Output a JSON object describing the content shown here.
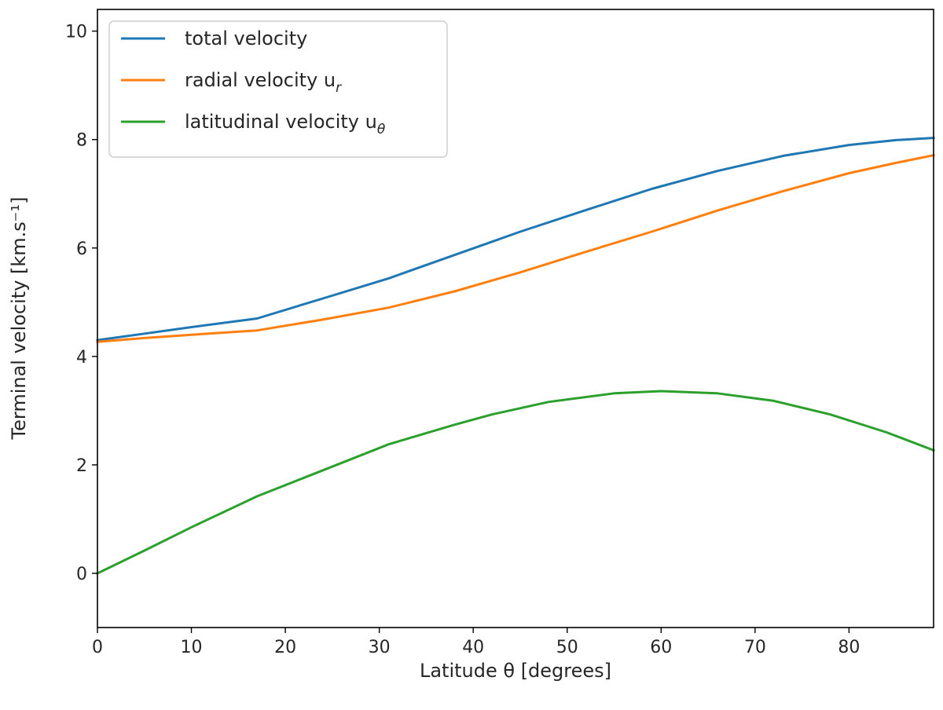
{
  "chart_data": {
    "type": "line",
    "title": "",
    "xlabel": "Latitude θ [degrees]",
    "ylabel": "Terminal velocity [km.s⁻¹]",
    "xlim": [
      0,
      89
    ],
    "ylim": [
      -1,
      10.4
    ],
    "xticks": [
      0,
      10,
      20,
      30,
      40,
      50,
      60,
      70,
      80
    ],
    "yticks": [
      0,
      2,
      4,
      6,
      8,
      10
    ],
    "legend_position": "upper left",
    "series": [
      {
        "name": "total velocity",
        "name_main": "total velocity",
        "name_sub": "",
        "color": "#1f77b4",
        "x": [
          0,
          5,
          10,
          17,
          24,
          31,
          38,
          45,
          52,
          59,
          66,
          73,
          80,
          85,
          89
        ],
        "y": [
          4.3,
          4.42,
          4.54,
          4.7,
          5.07,
          5.44,
          5.87,
          6.3,
          6.7,
          7.09,
          7.42,
          7.7,
          7.9,
          7.99,
          8.03
        ]
      },
      {
        "name": "radial velocity u_r",
        "name_main": "radial velocity u",
        "name_sub": "r",
        "color": "#ff7f0e",
        "x": [
          0,
          5,
          10,
          17,
          24,
          31,
          38,
          45,
          52,
          59,
          66,
          73,
          80,
          85,
          89
        ],
        "y": [
          4.27,
          4.34,
          4.4,
          4.48,
          4.68,
          4.9,
          5.2,
          5.55,
          5.93,
          6.3,
          6.69,
          7.05,
          7.38,
          7.57,
          7.71
        ]
      },
      {
        "name": "latitudinal velocity u_θ",
        "name_main": "latitudinal velocity u",
        "name_sub": "θ",
        "color": "#2ca02c",
        "x": [
          0,
          5,
          10,
          17,
          24,
          31,
          38,
          42,
          48,
          55,
          60,
          66,
          72,
          78,
          84,
          89
        ],
        "y": [
          0.0,
          0.42,
          0.85,
          1.42,
          1.9,
          2.38,
          2.74,
          2.93,
          3.16,
          3.32,
          3.36,
          3.32,
          3.18,
          2.93,
          2.6,
          2.27
        ]
      }
    ]
  }
}
